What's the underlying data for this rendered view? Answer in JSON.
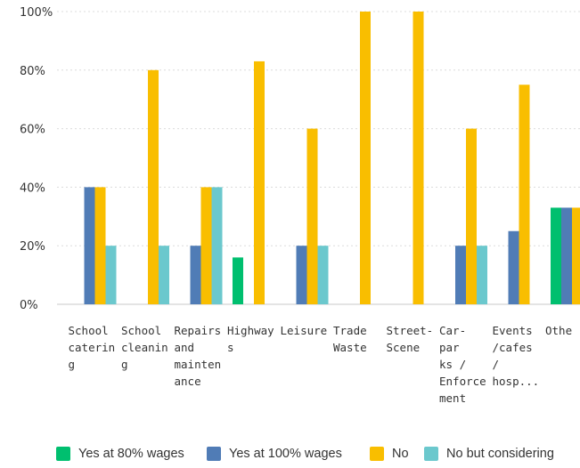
{
  "chart_data": {
    "type": "bar",
    "categories": [
      [
        "School",
        "caterin",
        "g"
      ],
      [
        "School",
        "cleanin",
        "g"
      ],
      [
        "Repairs",
        "and",
        "mainten",
        "ance"
      ],
      [
        "Highway",
        "s"
      ],
      [
        "Leisure"
      ],
      [
        "Trade",
        "Waste"
      ],
      [
        "Street-",
        "Scene"
      ],
      [
        "Car-",
        "par",
        "ks /",
        "Enforce",
        "ment"
      ],
      [
        "Events",
        "/cafes",
        "/",
        "hosp..."
      ],
      [
        "Othe"
      ]
    ],
    "series": [
      {
        "name": "Yes at 80% wages",
        "color": "#00bf6f",
        "values": [
          0,
          0,
          0,
          16,
          0,
          0,
          0,
          0,
          0,
          33
        ]
      },
      {
        "name": "Yes at 100% wages",
        "color": "#507cb6",
        "values": [
          40,
          0,
          20,
          0,
          20,
          0,
          0,
          20,
          25,
          33
        ]
      },
      {
        "name": "No",
        "color": "#f9be00",
        "values": [
          40,
          80,
          40,
          83,
          60,
          100,
          100,
          60,
          75,
          33
        ]
      },
      {
        "name": "No but considering",
        "color": "#6bc8cd",
        "values": [
          20,
          20,
          40,
          0,
          20,
          0,
          0,
          20,
          0,
          0
        ]
      }
    ],
    "y_ticks": [
      "0%",
      "20%",
      "40%",
      "60%",
      "80%",
      "100%"
    ],
    "ylim": [
      0,
      100
    ],
    "grid": true,
    "legend_position": "bottom"
  }
}
